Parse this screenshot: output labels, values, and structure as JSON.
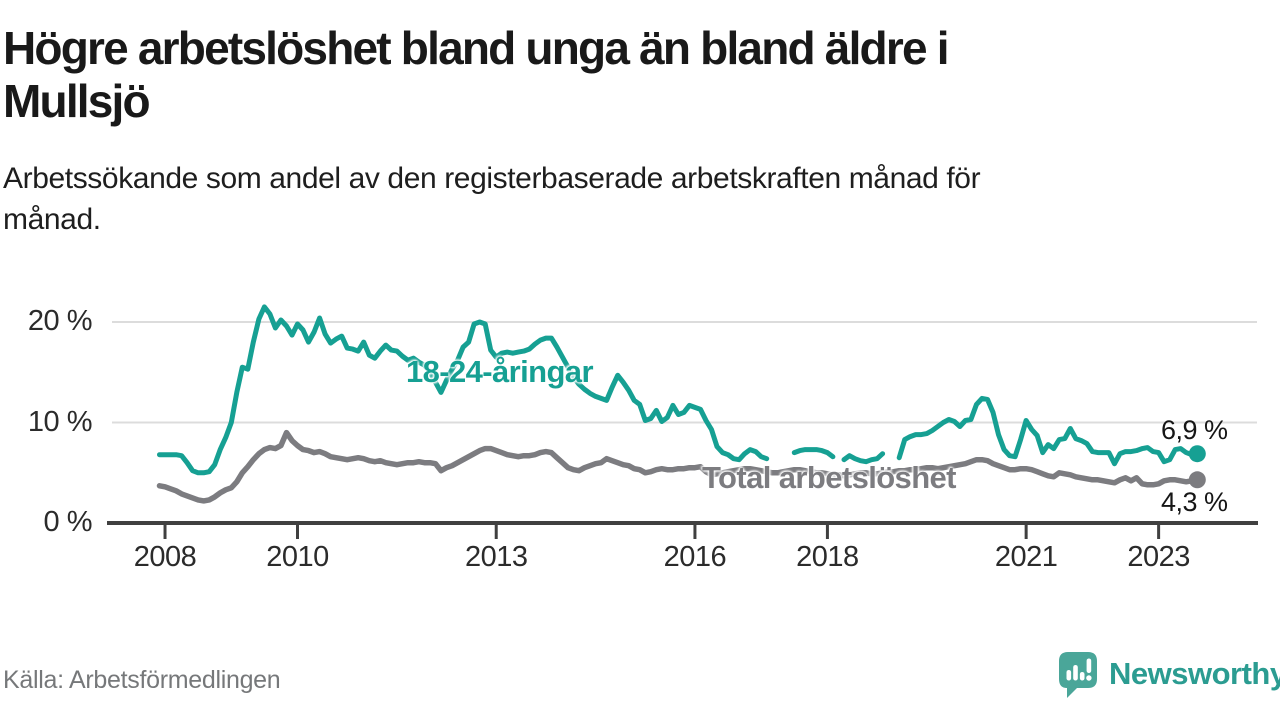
{
  "header": {
    "title_line1": "Högre arbetslöshet bland unga än bland äldre i",
    "title_line2": "Mullsjö",
    "subtitle_line1": "Arbetssökande som andel av den registerbaserade arbetskraften månad för",
    "subtitle_line2": "månad."
  },
  "footer": {
    "source": "Källa: Arbetsförmedlingen",
    "brand_name": "Newsworthy",
    "brand_icon": "newsworthy-speech-bubble-bar-chart-icon",
    "brand_text_color": "#2b9c91",
    "brand_icon_color": "#4aa699"
  },
  "chart_data": {
    "type": "line",
    "title": "Högre arbetslöshet bland unga än bland äldre i Mullsjö",
    "subtitle": "Arbetssökande som andel av den registerbaserade arbetskraften månad för månad.",
    "unit": "percent",
    "frequency": "monthly",
    "x_start": "2007-12",
    "x_end": "2023-08",
    "grid": "horizontal-only",
    "legend": "inline-labels",
    "yaxis": {
      "range": [
        0,
        22
      ],
      "ticks": [
        {
          "value": 20,
          "label": "20 %"
        },
        {
          "value": 10,
          "label": "10 %"
        },
        {
          "value": 0,
          "label": "0 %"
        }
      ]
    },
    "xaxis": {
      "ticks": [
        {
          "year": 2008,
          "label": "2008"
        },
        {
          "year": 2010,
          "label": "2010"
        },
        {
          "year": 2013,
          "label": "2013"
        },
        {
          "year": 2016,
          "label": "2016"
        },
        {
          "year": 2018,
          "label": "2018"
        },
        {
          "year": 2021,
          "label": "2021"
        },
        {
          "year": 2023,
          "label": "2023"
        }
      ]
    },
    "colors": {
      "grid": "#dcdcdc",
      "axis": "#404040",
      "tick_label": "#2b2b2b",
      "value_label": "#161616"
    },
    "series": [
      {
        "name": "18-24-åringar",
        "color": "#16a093",
        "stroke_width": 5,
        "end_value": 6.9,
        "end_label": "6,9 %",
        "values": [
          6.8,
          6.8,
          6.8,
          6.8,
          6.7,
          6.0,
          5.2,
          5.0,
          5.0,
          5.1,
          5.8,
          7.3,
          8.5,
          10.0,
          13.0,
          15.5,
          15.3,
          18.0,
          20.3,
          21.5,
          20.8,
          19.4,
          20.2,
          19.6,
          18.7,
          19.8,
          19.2,
          18.0,
          19.0,
          20.4,
          18.8,
          17.9,
          18.3,
          18.6,
          17.4,
          17.3,
          17.1,
          18.0,
          16.7,
          16.4,
          17.1,
          17.7,
          17.2,
          17.1,
          16.6,
          16.2,
          16.4,
          16.0,
          15.7,
          15.0,
          14.0,
          13.0,
          14.2,
          15.3,
          16.2,
          17.5,
          18.0,
          19.8,
          20.0,
          19.8,
          17.2,
          16.5,
          16.9,
          17.0,
          16.9,
          17.0,
          17.1,
          17.3,
          17.8,
          18.2,
          18.4,
          18.4,
          17.5,
          16.5,
          15.5,
          14.5,
          13.8,
          13.3,
          12.9,
          12.6,
          12.4,
          12.2,
          13.5,
          14.7,
          14.0,
          13.2,
          12.2,
          11.8,
          10.2,
          10.4,
          11.2,
          10.1,
          10.5,
          11.7,
          10.8,
          11.0,
          11.7,
          11.5,
          11.3,
          10.2,
          9.3,
          7.6,
          7.0,
          6.8,
          6.4,
          6.3,
          6.9,
          7.3,
          7.1,
          6.6,
          6.4,
          null,
          null,
          null,
          null,
          7.0,
          7.2,
          7.3,
          7.3,
          7.3,
          7.2,
          7.0,
          6.6,
          null,
          6.3,
          6.7,
          6.4,
          6.2,
          6.1,
          6.3,
          6.4,
          6.9,
          null,
          null,
          6.5,
          8.3,
          8.6,
          8.8,
          8.8,
          8.9,
          9.2,
          9.6,
          10.0,
          10.3,
          10.1,
          9.6,
          10.2,
          10.3,
          11.8,
          12.4,
          12.3,
          11.0,
          8.8,
          7.3,
          6.7,
          6.6,
          8.3,
          10.2,
          9.3,
          8.7,
          7.0,
          7.8,
          7.4,
          8.3,
          8.4,
          9.4,
          8.4,
          8.2,
          7.9,
          7.1,
          7.0,
          7.0,
          7.0,
          5.9,
          6.9,
          7.1,
          7.1,
          7.2,
          7.4,
          7.5,
          7.1,
          7.0,
          6.1,
          6.3,
          7.3,
          7.4,
          7.0,
          6.8,
          6.9
        ]
      },
      {
        "name": "Total arbetslöshet",
        "color": "#7c7c80",
        "stroke_width": 5.5,
        "end_value": 4.3,
        "end_label": "4,3 %",
        "values": [
          3.7,
          3.6,
          3.4,
          3.2,
          2.9,
          2.7,
          2.5,
          2.3,
          2.2,
          2.3,
          2.6,
          3.0,
          3.3,
          3.5,
          4.1,
          5.0,
          5.6,
          6.3,
          6.9,
          7.3,
          7.5,
          7.4,
          7.7,
          9.0,
          8.2,
          7.7,
          7.3,
          7.2,
          7.0,
          7.1,
          6.9,
          6.6,
          6.5,
          6.4,
          6.3,
          6.4,
          6.5,
          6.4,
          6.2,
          6.1,
          6.2,
          6.0,
          5.9,
          5.8,
          5.9,
          6.0,
          6.0,
          6.1,
          6.0,
          6.0,
          5.9,
          5.2,
          5.5,
          5.7,
          6.0,
          6.3,
          6.6,
          6.9,
          7.2,
          7.4,
          7.4,
          7.2,
          7.0,
          6.8,
          6.7,
          6.6,
          6.7,
          6.7,
          6.8,
          7.0,
          7.1,
          7.0,
          6.5,
          6.0,
          5.5,
          5.3,
          5.2,
          5.5,
          5.7,
          5.9,
          6.0,
          6.4,
          6.2,
          6.0,
          5.8,
          5.7,
          5.4,
          5.3,
          5.0,
          5.1,
          5.3,
          5.4,
          5.3,
          5.3,
          5.4,
          5.4,
          5.5,
          5.5,
          5.6,
          5.1,
          4.8,
          4.9,
          5.0,
          5.1,
          5.2,
          5.3,
          5.4,
          5.4,
          5.3,
          5.2,
          5.1,
          5.0,
          5.0,
          5.1,
          5.2,
          5.3,
          5.3,
          5.2,
          5.1,
          5.0,
          5.0,
          4.9,
          4.8,
          4.8,
          4.7,
          4.8,
          4.9,
          5.0,
          5.0,
          4.9,
          4.9,
          5.0,
          5.1,
          5.1,
          5.2,
          5.2,
          5.3,
          5.3,
          5.4,
          5.5,
          5.5,
          5.4,
          5.5,
          5.6,
          5.7,
          5.8,
          5.9,
          6.1,
          6.3,
          6.3,
          6.2,
          5.9,
          5.7,
          5.5,
          5.3,
          5.3,
          5.4,
          5.4,
          5.3,
          5.1,
          4.9,
          4.7,
          4.6,
          5.0,
          4.9,
          4.8,
          4.6,
          4.5,
          4.4,
          4.3,
          4.3,
          4.2,
          4.1,
          4.0,
          4.3,
          4.5,
          4.2,
          4.5,
          3.9,
          3.8,
          3.8,
          3.9,
          4.2,
          4.3,
          4.3,
          4.2,
          4.1,
          4.2,
          4.3
        ]
      }
    ]
  }
}
